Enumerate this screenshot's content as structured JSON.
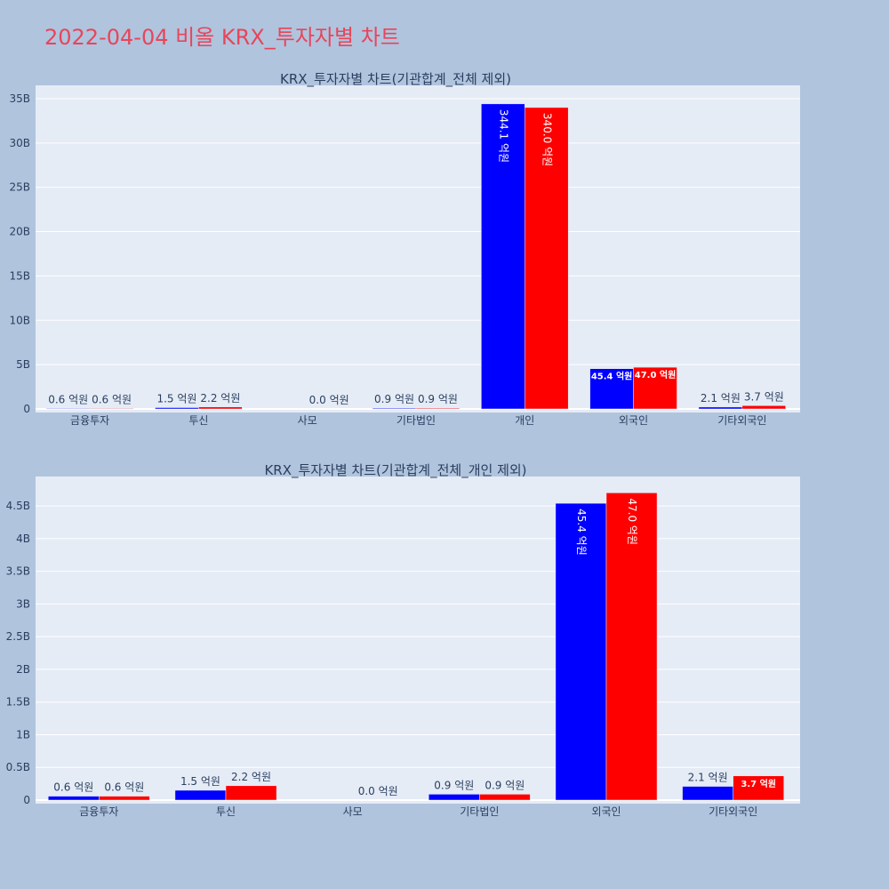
{
  "title": "2022-04-04 비올 KRX_투자자별 차트",
  "chart_data": [
    {
      "type": "bar",
      "title": "KRX_투자자별 차트(기관합계_전체 제외)",
      "categories": [
        "금융투자",
        "투신",
        "사모",
        "기타법인",
        "개인",
        "외국인",
        "기타외국인"
      ],
      "series": [
        {
          "color": "#0000ff",
          "values": [
            0.06,
            0.15,
            0.0,
            0.09,
            34.41,
            4.54,
            0.21
          ],
          "labels": [
            "0.6 억원",
            "1.5 억원",
            "",
            "0.9 억원",
            "344.1 억원",
            "45.4 억원",
            "2.1 억원"
          ]
        },
        {
          "color": "#ff0000",
          "values": [
            0.06,
            0.22,
            0.0,
            0.09,
            34.0,
            4.7,
            0.37
          ],
          "labels": [
            "0.6 억원",
            "2.2 억원",
            "0.0 억원",
            "0.9 억원",
            "340.0 억원",
            "47.0 억원",
            "3.7 억원"
          ]
        }
      ],
      "yticks": [
        "0",
        "5B",
        "10B",
        "15B",
        "20B",
        "25B",
        "30B",
        "35B"
      ],
      "ylim": [
        0,
        36.5
      ],
      "ytick_step": 5
    },
    {
      "type": "bar",
      "title": "KRX_투자자별 차트(기관합계_전체_개인 제외)",
      "categories": [
        "금융투자",
        "투신",
        "사모",
        "기타법인",
        "외국인",
        "기타외국인"
      ],
      "series": [
        {
          "color": "#0000ff",
          "values": [
            0.06,
            0.15,
            0.0,
            0.09,
            4.54,
            0.21
          ],
          "labels": [
            "0.6 억원",
            "1.5 억원",
            "",
            "0.9 억원",
            "45.4 억원",
            "2.1 억원"
          ]
        },
        {
          "color": "#ff0000",
          "values": [
            0.06,
            0.22,
            0.0,
            0.09,
            4.7,
            0.37
          ],
          "labels": [
            "0.6 억원",
            "2.2 억원",
            "0.0 억원",
            "0.9 억원",
            "47.0 억원",
            "3.7 억원"
          ]
        }
      ],
      "yticks": [
        "0",
        "0.5B",
        "1B",
        "1.5B",
        "2B",
        "2.5B",
        "3B",
        "3.5B",
        "4B",
        "4.5B"
      ],
      "ylim": [
        0,
        4.95
      ],
      "ytick_step": 0.5
    }
  ]
}
